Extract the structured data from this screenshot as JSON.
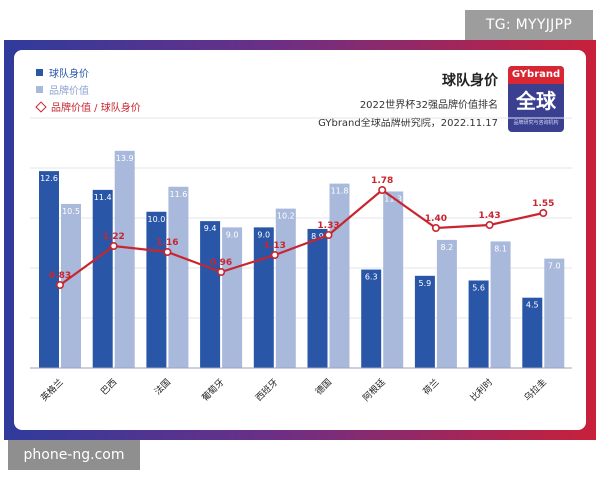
{
  "watermarks": {
    "top": "TG: MYYJJPP",
    "bottom": "phone-ng.com"
  },
  "colors": {
    "frame_left": "#2f3b9c",
    "frame_right": "#c8203a",
    "team_value_bar": "#2a56a8",
    "brand_value_bar": "#a9b9dc",
    "ratio_line": "#c9252f"
  },
  "logo": {
    "top_text": "GYbrand",
    "main_text": "全球",
    "sub_text": "品牌研究与咨询机构"
  },
  "chart_data": {
    "type": "bar",
    "title": "球队身价",
    "subtitle": "2022世界杯32强品牌价值排名",
    "source": "GYbrand全球品牌研究院，2022.11.17",
    "legend": {
      "placement": "top-left",
      "entries": [
        "球队身价",
        "品牌价值",
        "品牌价值 / 球队身价"
      ]
    },
    "categories": [
      "英格兰",
      "巴西",
      "法国",
      "葡萄牙",
      "西班牙",
      "德国",
      "阿根廷",
      "荷兰",
      "比利时",
      "乌拉圭"
    ],
    "series": [
      {
        "name": "球队身价",
        "type": "bar",
        "values": [
          12.6,
          11.4,
          10.0,
          9.4,
          9.0,
          8.9,
          6.3,
          5.9,
          5.6,
          4.5
        ]
      },
      {
        "name": "品牌价值",
        "type": "bar",
        "values": [
          10.5,
          13.9,
          11.6,
          9.0,
          10.2,
          11.8,
          11.3,
          8.2,
          8.1,
          7.0
        ]
      },
      {
        "name": "品牌价值 / 球队身价",
        "type": "line",
        "values": [
          0.83,
          1.22,
          1.16,
          0.96,
          1.13,
          1.33,
          1.78,
          1.4,
          1.43,
          1.55
        ]
      }
    ],
    "ylim_bars": [
      0,
      16
    ],
    "ylim_line": [
      0,
      2.5
    ],
    "grid": true
  }
}
